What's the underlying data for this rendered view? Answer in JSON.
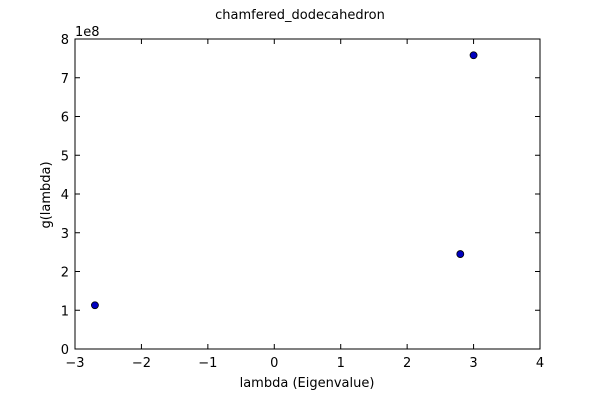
{
  "chart_data": {
    "type": "scatter",
    "title": "chamfered_dodecahedron",
    "xlabel": "lambda (Eigenvalue)",
    "ylabel": "g(lambda)",
    "y_offset_label": "1e8",
    "xlim": [
      -3,
      4
    ],
    "ylim": [
      0,
      800000000
    ],
    "xticks": [
      -3,
      -2,
      -1,
      0,
      1,
      2,
      3,
      4
    ],
    "xtick_labels": [
      "−3",
      "−2",
      "−1",
      "0",
      "1",
      "2",
      "3",
      "4"
    ],
    "yticks": [
      0,
      100000000,
      200000000,
      300000000,
      400000000,
      500000000,
      600000000,
      700000000,
      800000000
    ],
    "ytick_labels": [
      "0",
      "1",
      "2",
      "3",
      "4",
      "5",
      "6",
      "7",
      "8"
    ],
    "grid": false,
    "point_color": "#0000bf",
    "points": [
      {
        "x": -2.7,
        "y": 113000000
      },
      {
        "x": 2.8,
        "y": 245000000
      },
      {
        "x": 3.0,
        "y": 758000000
      }
    ]
  }
}
